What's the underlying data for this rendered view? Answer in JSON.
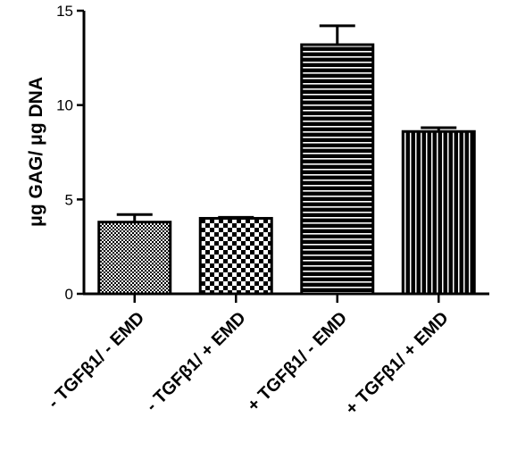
{
  "chart_data": {
    "type": "bar",
    "ylabel": "μg GAG/ μg DNA",
    "ylim": [
      0,
      15
    ],
    "yticks": [
      0,
      5,
      10,
      15
    ],
    "categories": [
      "- TGFβ1/ - EMD",
      "- TGFβ1/ + EMD",
      "+ TGFβ1/ - EMD",
      "+ TGFβ1/ + EMD"
    ],
    "values": [
      3.8,
      4.0,
      13.2,
      8.6
    ],
    "errors": [
      0.4,
      0.05,
      1.0,
      0.2
    ],
    "patterns": [
      "fine-checker",
      "checkerboard",
      "horizontal-stripes",
      "vertical-stripes"
    ],
    "bar_color": "#000000",
    "grid": false
  }
}
